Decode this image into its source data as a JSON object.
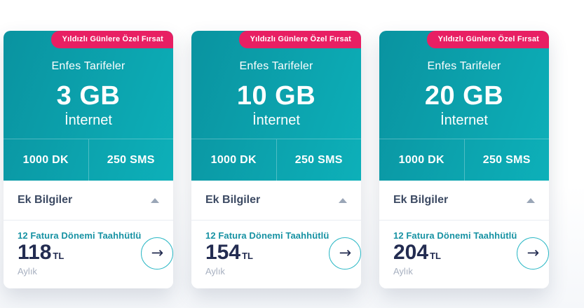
{
  "colors": {
    "teal_dark": "#0a93a0",
    "teal_light": "#0db0b9",
    "badge_pink": "#e81f63",
    "navy": "#232c51",
    "commitment_teal": "#1792a3",
    "muted": "#a7b0c0",
    "details_text": "#3c4a63"
  },
  "icons": {
    "chevron": "chevron-up-icon",
    "arrow": "arrow-right-icon",
    "arrow_glyph": "→"
  },
  "cards": [
    {
      "badge": "Yıldızlı Günlere Özel Fırsat",
      "title": "Enfes Tarifeler",
      "amount": "3 GB",
      "amount_unit": "İnternet",
      "minutes": "1000 DK",
      "sms": "250 SMS",
      "details_label": "Ek Bilgiler",
      "commitment": "12 Fatura Dönemi Taahhütlü",
      "price": "118",
      "currency": "TL",
      "period": "Aylık"
    },
    {
      "badge": "Yıldızlı Günlere Özel Fırsat",
      "title": "Enfes Tarifeler",
      "amount": "10 GB",
      "amount_unit": "İnternet",
      "minutes": "1000 DK",
      "sms": "250 SMS",
      "details_label": "Ek Bilgiler",
      "commitment": "12 Fatura Dönemi Taahhütlü",
      "price": "154",
      "currency": "TL",
      "period": "Aylık"
    },
    {
      "badge": "Yıldızlı Günlere Özel Fırsat",
      "title": "Enfes Tarifeler",
      "amount": "20 GB",
      "amount_unit": "İnternet",
      "minutes": "1000 DK",
      "sms": "250 SMS",
      "details_label": "Ek Bilgiler",
      "commitment": "12 Fatura Dönemi Taahhütlü",
      "price": "204",
      "currency": "TL",
      "period": "Aylık"
    }
  ]
}
